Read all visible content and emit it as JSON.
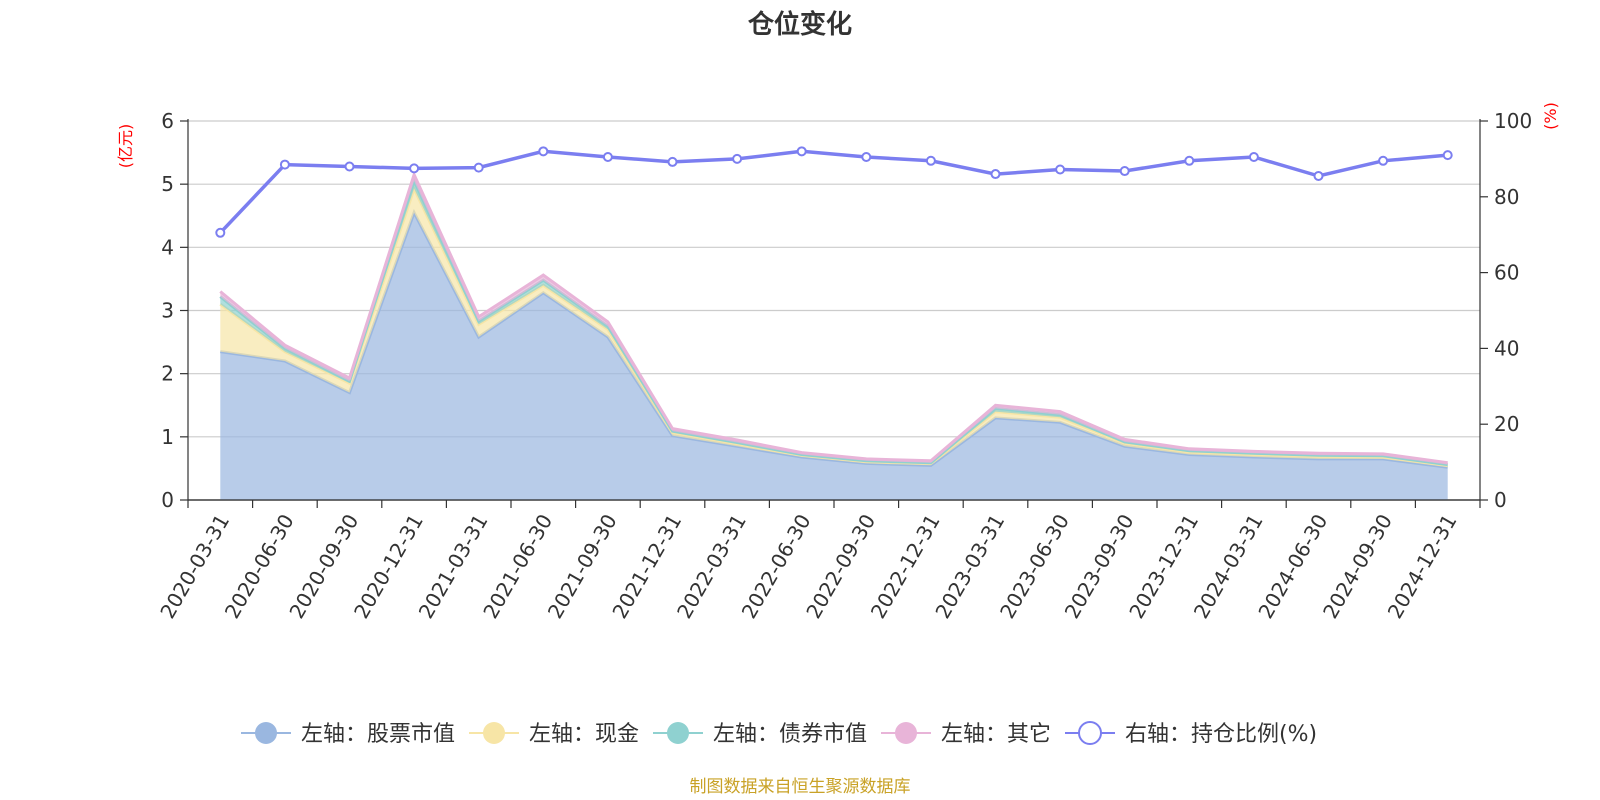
{
  "title": "仓位变化",
  "source": "制图数据来自恒生聚源数据库",
  "chart_data": {
    "type": "area",
    "categories": [
      "2020-03-31",
      "2020-06-30",
      "2020-09-30",
      "2020-12-31",
      "2021-03-31",
      "2021-06-30",
      "2021-09-30",
      "2021-12-31",
      "2022-03-31",
      "2022-06-30",
      "2022-09-30",
      "2022-12-31",
      "2023-03-31",
      "2023-06-30",
      "2023-09-30",
      "2023-12-31",
      "2024-03-31",
      "2024-06-30",
      "2024-09-30",
      "2024-12-31"
    ],
    "left_axis": {
      "unit": "(亿元)",
      "ylim": [
        0,
        6
      ],
      "ticks": [
        "0",
        "1",
        "2",
        "3",
        "4",
        "5",
        "6"
      ]
    },
    "right_axis": {
      "unit": "(%)",
      "ylim": [
        0,
        100
      ],
      "ticks": [
        "0",
        "20",
        "40",
        "60",
        "80",
        "100"
      ]
    },
    "grid": true,
    "legend_position": "bottom",
    "series": [
      {
        "name": "左轴：股票市值",
        "axis": "left",
        "kind": "stacked-area",
        "color": "#9ab7e0",
        "values": [
          2.35,
          2.2,
          1.7,
          4.55,
          2.58,
          3.28,
          2.58,
          1.02,
          0.85,
          0.68,
          0.58,
          0.55,
          1.3,
          1.23,
          0.85,
          0.72,
          0.68,
          0.65,
          0.65,
          0.52
        ]
      },
      {
        "name": "左轴：现金",
        "axis": "left",
        "kind": "stacked-area",
        "color": "#f7e5a6",
        "values": [
          0.75,
          0.15,
          0.15,
          0.38,
          0.2,
          0.12,
          0.12,
          0.05,
          0.04,
          0.03,
          0.03,
          0.03,
          0.1,
          0.08,
          0.05,
          0.04,
          0.04,
          0.04,
          0.03,
          0.03
        ]
      },
      {
        "name": "左轴：债券市值",
        "axis": "left",
        "kind": "stacked-area",
        "color": "#8fd1d0",
        "values": [
          0.12,
          0.05,
          0.03,
          0.12,
          0.05,
          0.08,
          0.05,
          0.02,
          0.02,
          0.01,
          0.01,
          0.01,
          0.05,
          0.04,
          0.02,
          0.02,
          0.02,
          0.02,
          0.02,
          0.01
        ]
      },
      {
        "name": "左轴：其它",
        "axis": "left",
        "kind": "stacked-area",
        "color": "#e8b4d8",
        "values": [
          0.08,
          0.05,
          0.05,
          0.1,
          0.07,
          0.08,
          0.07,
          0.04,
          0.04,
          0.03,
          0.03,
          0.03,
          0.05,
          0.05,
          0.04,
          0.03,
          0.03,
          0.03,
          0.03,
          0.03
        ]
      },
      {
        "name": "右轴：持仓比例(%)",
        "axis": "right",
        "kind": "line",
        "color": "#7b7ef0",
        "values": [
          70.5,
          88.5,
          88.0,
          87.5,
          87.7,
          92.0,
          90.5,
          89.2,
          90.0,
          92.0,
          90.5,
          89.5,
          86.0,
          87.2,
          86.8,
          89.5,
          90.5,
          85.5,
          89.5,
          91.0
        ]
      }
    ]
  }
}
